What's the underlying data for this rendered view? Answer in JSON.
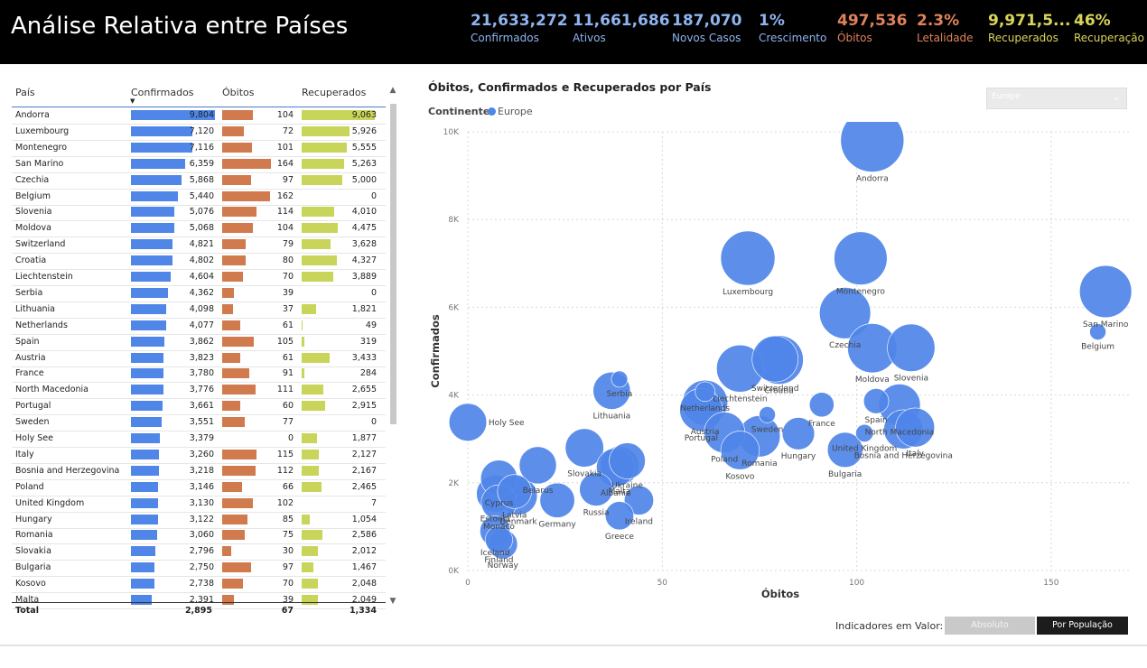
{
  "header": {
    "title": "Análise Relativa entre Países",
    "kpis": [
      {
        "value": "21,633,272",
        "label": "Confirmados",
        "color": "#8fb4f0"
      },
      {
        "value": "11,661,686",
        "label": "Ativos",
        "color": "#8fb4f0"
      },
      {
        "value": "187,070",
        "label": "Novos Casos",
        "color": "#8fb4f0"
      },
      {
        "value": "1%",
        "label": "Crescimento",
        "color": "#8fb4f0"
      },
      {
        "value": "497,536",
        "label": "Óbitos",
        "color": "#e0825a"
      },
      {
        "value": "2.3%",
        "label": "Letalidade",
        "color": "#e0825a"
      },
      {
        "value": "9,971,5...",
        "label": "Recuperados",
        "color": "#d9d55a"
      },
      {
        "value": "46%",
        "label": "Recuperação",
        "color": "#d9d55a"
      }
    ]
  },
  "table": {
    "columns": [
      "País",
      "Confirmados",
      "Óbitos",
      "Recuperados"
    ],
    "colors": {
      "confirmados": "#4f86e8",
      "obitos": "#d07a4e",
      "recuperados": "#c9d55a"
    },
    "rows": [
      {
        "country": "Andorra",
        "confirmados": "9,804",
        "obitos": "104",
        "recuperados": "9,063",
        "c": 9804,
        "o": 104,
        "r": 9063
      },
      {
        "country": "Luxembourg",
        "confirmados": "7,120",
        "obitos": "72",
        "recuperados": "5,926",
        "c": 7120,
        "o": 72,
        "r": 5926
      },
      {
        "country": "Montenegro",
        "confirmados": "7,116",
        "obitos": "101",
        "recuperados": "5,555",
        "c": 7116,
        "o": 101,
        "r": 5555
      },
      {
        "country": "San Marino",
        "confirmados": "6,359",
        "obitos": "164",
        "recuperados": "5,263",
        "c": 6359,
        "o": 164,
        "r": 5263
      },
      {
        "country": "Czechia",
        "confirmados": "5,868",
        "obitos": "97",
        "recuperados": "5,000",
        "c": 5868,
        "o": 97,
        "r": 5000
      },
      {
        "country": "Belgium",
        "confirmados": "5,440",
        "obitos": "162",
        "recuperados": "0",
        "c": 5440,
        "o": 162,
        "r": 0
      },
      {
        "country": "Slovenia",
        "confirmados": "5,076",
        "obitos": "114",
        "recuperados": "4,010",
        "c": 5076,
        "o": 114,
        "r": 4010
      },
      {
        "country": "Moldova",
        "confirmados": "5,068",
        "obitos": "104",
        "recuperados": "4,475",
        "c": 5068,
        "o": 104,
        "r": 4475
      },
      {
        "country": "Switzerland",
        "confirmados": "4,821",
        "obitos": "79",
        "recuperados": "3,628",
        "c": 4821,
        "o": 79,
        "r": 3628
      },
      {
        "country": "Croatia",
        "confirmados": "4,802",
        "obitos": "80",
        "recuperados": "4,327",
        "c": 4802,
        "o": 80,
        "r": 4327
      },
      {
        "country": "Liechtenstein",
        "confirmados": "4,604",
        "obitos": "70",
        "recuperados": "3,889",
        "c": 4604,
        "o": 70,
        "r": 3889
      },
      {
        "country": "Serbia",
        "confirmados": "4,362",
        "obitos": "39",
        "recuperados": "0",
        "c": 4362,
        "o": 39,
        "r": 0
      },
      {
        "country": "Lithuania",
        "confirmados": "4,098",
        "obitos": "37",
        "recuperados": "1,821",
        "c": 4098,
        "o": 37,
        "r": 1821
      },
      {
        "country": "Netherlands",
        "confirmados": "4,077",
        "obitos": "61",
        "recuperados": "49",
        "c": 4077,
        "o": 61,
        "r": 49
      },
      {
        "country": "Spain",
        "confirmados": "3,862",
        "obitos": "105",
        "recuperados": "319",
        "c": 3862,
        "o": 105,
        "r": 319
      },
      {
        "country": "Austria",
        "confirmados": "3,823",
        "obitos": "61",
        "recuperados": "3,433",
        "c": 3823,
        "o": 61,
        "r": 3433
      },
      {
        "country": "France",
        "confirmados": "3,780",
        "obitos": "91",
        "recuperados": "284",
        "c": 3780,
        "o": 91,
        "r": 284
      },
      {
        "country": "North Macedonia",
        "confirmados": "3,776",
        "obitos": "111",
        "recuperados": "2,655",
        "c": 3776,
        "o": 111,
        "r": 2655
      },
      {
        "country": "Portugal",
        "confirmados": "3,661",
        "obitos": "60",
        "recuperados": "2,915",
        "c": 3661,
        "o": 60,
        "r": 2915
      },
      {
        "country": "Sweden",
        "confirmados": "3,551",
        "obitos": "77",
        "recuperados": "0",
        "c": 3551,
        "o": 77,
        "r": 0
      },
      {
        "country": "Holy See",
        "confirmados": "3,379",
        "obitos": "0",
        "recuperados": "1,877",
        "c": 3379,
        "o": 0,
        "r": 1877
      },
      {
        "country": "Italy",
        "confirmados": "3,260",
        "obitos": "115",
        "recuperados": "2,127",
        "c": 3260,
        "o": 115,
        "r": 2127
      },
      {
        "country": "Bosnia and Herzegovina",
        "confirmados": "3,218",
        "obitos": "112",
        "recuperados": "2,167",
        "c": 3218,
        "o": 112,
        "r": 2167
      },
      {
        "country": "Poland",
        "confirmados": "3,146",
        "obitos": "66",
        "recuperados": "2,465",
        "c": 3146,
        "o": 66,
        "r": 2465
      },
      {
        "country": "United Kingdom",
        "confirmados": "3,130",
        "obitos": "102",
        "recuperados": "7",
        "c": 3130,
        "o": 102,
        "r": 7
      },
      {
        "country": "Hungary",
        "confirmados": "3,122",
        "obitos": "85",
        "recuperados": "1,054",
        "c": 3122,
        "o": 85,
        "r": 1054
      },
      {
        "country": "Romania",
        "confirmados": "3,060",
        "obitos": "75",
        "recuperados": "2,586",
        "c": 3060,
        "o": 75,
        "r": 2586
      },
      {
        "country": "Slovakia",
        "confirmados": "2,796",
        "obitos": "30",
        "recuperados": "2,012",
        "c": 2796,
        "o": 30,
        "r": 2012
      },
      {
        "country": "Bulgaria",
        "confirmados": "2,750",
        "obitos": "97",
        "recuperados": "1,467",
        "c": 2750,
        "o": 97,
        "r": 1467
      },
      {
        "country": "Kosovo",
        "confirmados": "2,738",
        "obitos": "70",
        "recuperados": "2,048",
        "c": 2738,
        "o": 70,
        "r": 2048
      },
      {
        "country": "Malta",
        "confirmados": "2,391",
        "obitos": "39",
        "recuperados": "2,049",
        "c": 2391,
        "o": 39,
        "r": 2049
      }
    ],
    "total": {
      "label": "Total",
      "confirmados": "2,895",
      "obitos": "67",
      "recuperados": "1,334"
    }
  },
  "chart": {
    "title": "Óbitos, Confirmados e Recuperados por País",
    "legend_title": "Continente",
    "legend_item": "Europe",
    "dropdown_value": "Europe",
    "bubble_color": "#4f86e8"
  },
  "chart_data": {
    "type": "scatter",
    "xlabel": "Óbitos",
    "ylabel": "Confirmados",
    "xlim": [
      0,
      170
    ],
    "ylim": [
      0,
      10000
    ],
    "xticks": [
      0,
      50,
      100,
      150
    ],
    "yticks": [
      0,
      2000,
      4000,
      6000,
      8000,
      10000
    ],
    "xtick_labels": [
      "0",
      "50",
      "100",
      "150"
    ],
    "ytick_labels": [
      "0K",
      "2K",
      "4K",
      "6K",
      "8K",
      "10K"
    ],
    "grid": true,
    "points": [
      {
        "label": "Andorra",
        "x": 104,
        "y": 9804,
        "size": 9063
      },
      {
        "label": "Luxembourg",
        "x": 72,
        "y": 7120,
        "size": 5926
      },
      {
        "label": "Montenegro",
        "x": 101,
        "y": 7116,
        "size": 5555
      },
      {
        "label": "San Marino",
        "x": 164,
        "y": 6359,
        "size": 5263
      },
      {
        "label": "Czechia",
        "x": 97,
        "y": 5868,
        "size": 5000
      },
      {
        "label": "Belgium",
        "x": 162,
        "y": 5440,
        "size": 0
      },
      {
        "label": "Slovenia",
        "x": 114,
        "y": 5076,
        "size": 4010
      },
      {
        "label": "Moldova",
        "x": 104,
        "y": 5068,
        "size": 4475
      },
      {
        "label": "Switzerland",
        "x": 79,
        "y": 4821,
        "size": 3628
      },
      {
        "label": "Croatia",
        "x": 80,
        "y": 4802,
        "size": 4327
      },
      {
        "label": "Liechtenstein",
        "x": 70,
        "y": 4604,
        "size": 3889
      },
      {
        "label": "Serbia",
        "x": 39,
        "y": 4362,
        "size": 0
      },
      {
        "label": "Lithuania",
        "x": 37,
        "y": 4098,
        "size": 1821
      },
      {
        "label": "Netherlands",
        "x": 61,
        "y": 4077,
        "size": 49
      },
      {
        "label": "Spain",
        "x": 105,
        "y": 3862,
        "size": 319
      },
      {
        "label": "Austria",
        "x": 61,
        "y": 3823,
        "size": 3433
      },
      {
        "label": "France",
        "x": 91,
        "y": 3780,
        "size": 284
      },
      {
        "label": "North Macedonia",
        "x": 111,
        "y": 3776,
        "size": 2655
      },
      {
        "label": "Portugal",
        "x": 60,
        "y": 3661,
        "size": 2915
      },
      {
        "label": "Sweden",
        "x": 77,
        "y": 3551,
        "size": 0
      },
      {
        "label": "Holy See",
        "x": 0,
        "y": 3379,
        "size": 1877
      },
      {
        "label": "Italy",
        "x": 115,
        "y": 3260,
        "size": 2127
      },
      {
        "label": "Bosnia and Herzegovina",
        "x": 112,
        "y": 3218,
        "size": 2167
      },
      {
        "label": "Poland",
        "x": 66,
        "y": 3146,
        "size": 2465
      },
      {
        "label": "United Kingdom",
        "x": 102,
        "y": 3130,
        "size": 7
      },
      {
        "label": "Hungary",
        "x": 85,
        "y": 3122,
        "size": 1054
      },
      {
        "label": "Romania",
        "x": 75,
        "y": 3060,
        "size": 2586
      },
      {
        "label": "Slovakia",
        "x": 30,
        "y": 2796,
        "size": 2012
      },
      {
        "label": "Bulgaria",
        "x": 97,
        "y": 2750,
        "size": 1467
      },
      {
        "label": "Kosovo",
        "x": 70,
        "y": 2738,
        "size": 2048
      },
      {
        "label": "Malta",
        "x": 39,
        "y": 2391,
        "size": 2049
      },
      {
        "label": "Ukraine",
        "x": 41,
        "y": 2500,
        "size": 1600
      },
      {
        "label": "Albania",
        "x": 38,
        "y": 2350,
        "size": 2000
      },
      {
        "label": "Belarus",
        "x": 18,
        "y": 2400,
        "size": 1800
      },
      {
        "label": "Cyprus",
        "x": 8,
        "y": 2100,
        "size": 1700
      },
      {
        "label": "Estonia",
        "x": 7,
        "y": 1750,
        "size": 1800
      },
      {
        "label": "Denmark",
        "x": 13,
        "y": 1700,
        "size": 1900
      },
      {
        "label": "Germany",
        "x": 23,
        "y": 1600,
        "size": 1400
      },
      {
        "label": "Monaco",
        "x": 8,
        "y": 1550,
        "size": 1500
      },
      {
        "label": "Russia",
        "x": 33,
        "y": 1850,
        "size": 1200
      },
      {
        "label": "Latvia",
        "x": 12,
        "y": 1800,
        "size": 1300
      },
      {
        "label": "Ireland",
        "x": 44,
        "y": 1600,
        "size": 700
      },
      {
        "label": "Greece",
        "x": 39,
        "y": 1250,
        "size": 600
      },
      {
        "label": "Iceland",
        "x": 7,
        "y": 900,
        "size": 800
      },
      {
        "label": "Norway",
        "x": 9,
        "y": 600,
        "size": 700
      },
      {
        "label": "Finland",
        "x": 8,
        "y": 700,
        "size": 500
      }
    ]
  },
  "toggle": {
    "label": "Indicadores em Valor:",
    "options": [
      "Absoluto",
      "Por População"
    ],
    "selected": "Por População"
  }
}
